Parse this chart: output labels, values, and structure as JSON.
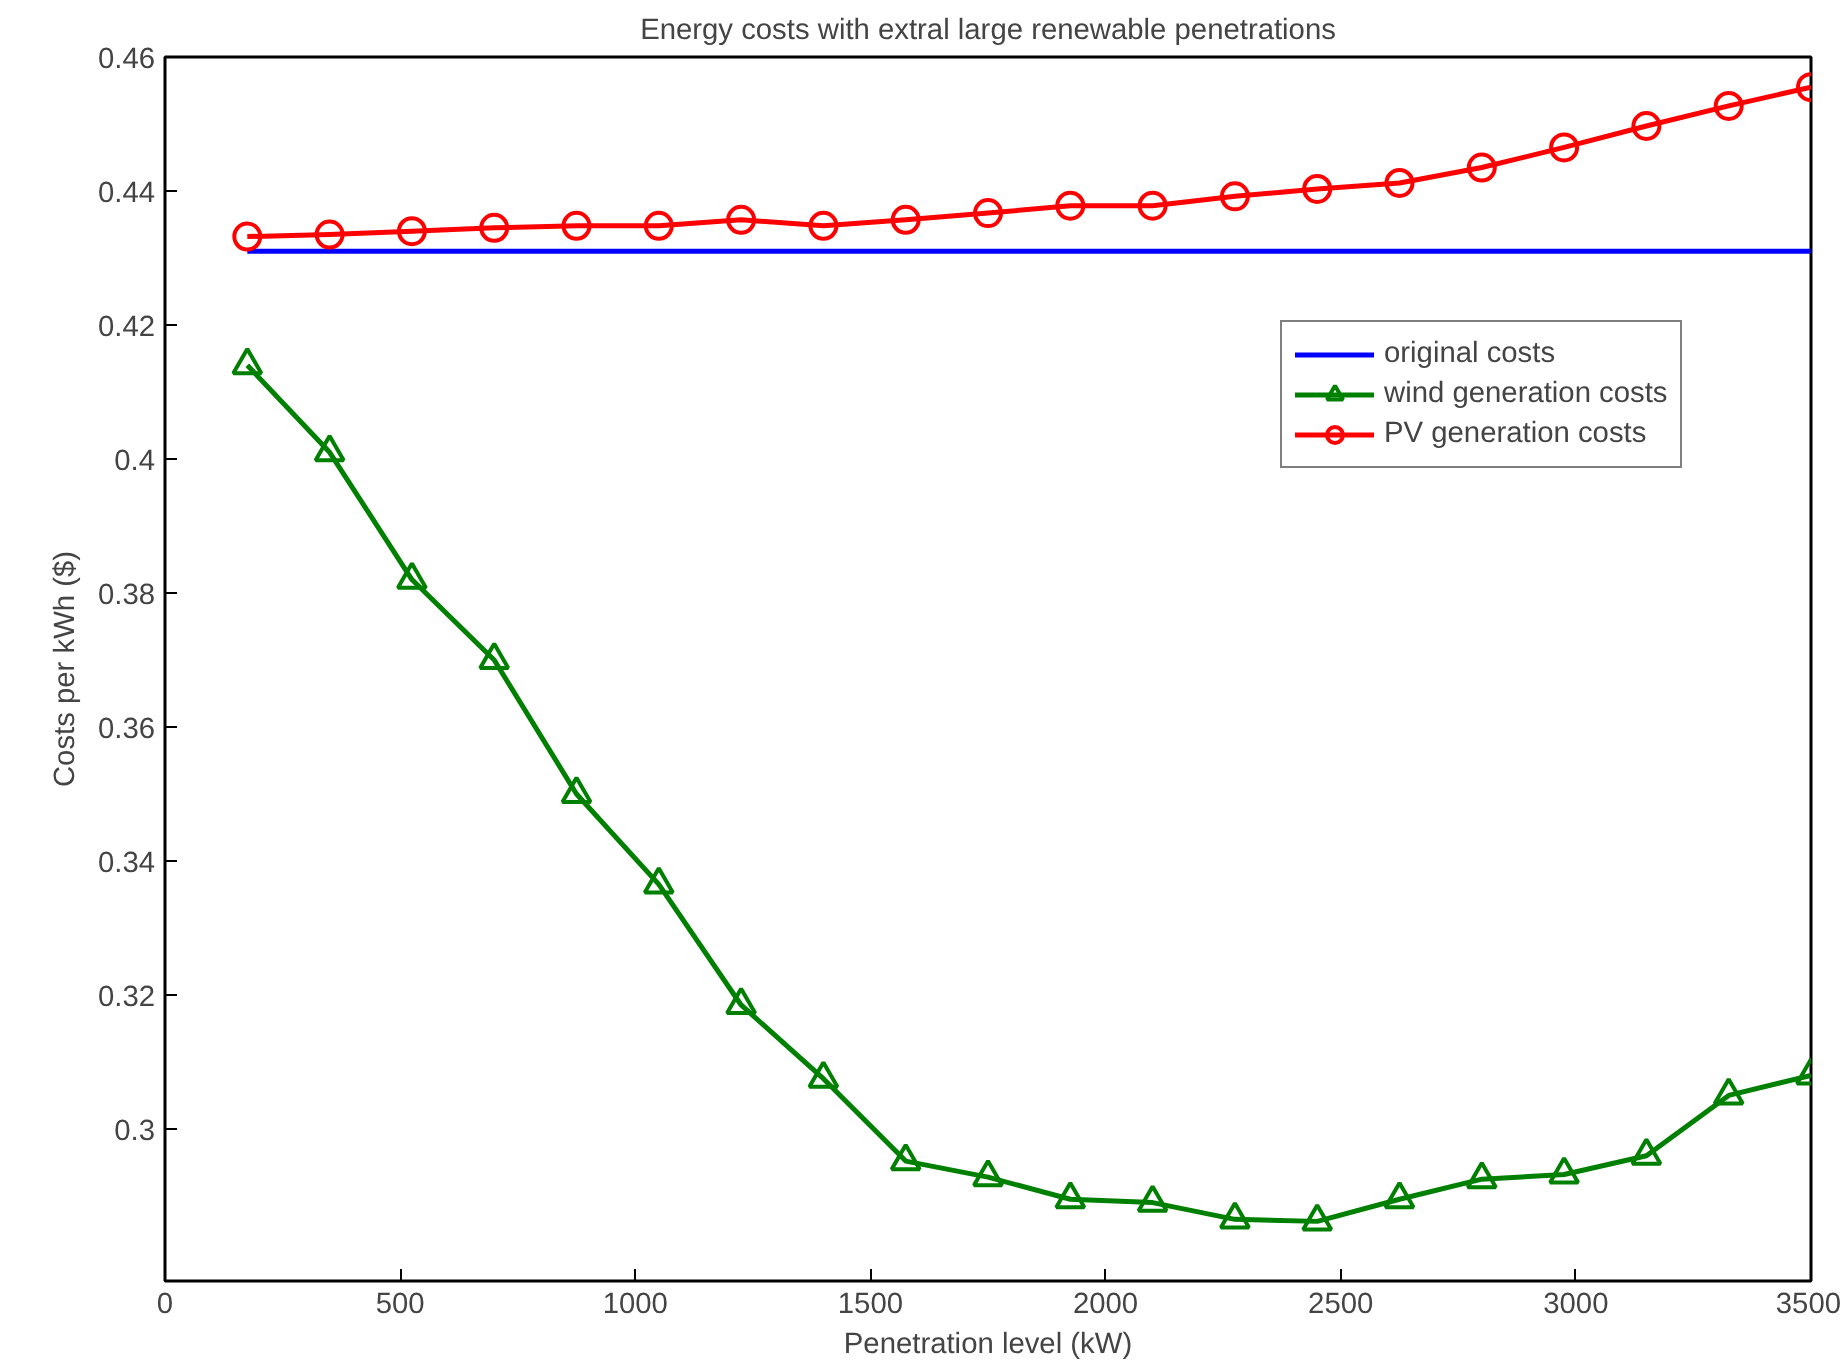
{
  "chart_data": {
    "type": "line",
    "title": "Energy costs with extral large renewable penetrations",
    "xlabel": "Penetration level (kW)",
    "ylabel": "Costs per kWh ($)",
    "x": [
      175,
      350,
      525,
      700,
      875,
      1050,
      1225,
      1400,
      1575,
      1750,
      1925,
      2100,
      2275,
      2450,
      2625,
      2800,
      2975,
      3150,
      3325,
      3500
    ],
    "series": [
      {
        "name": "original costs",
        "color": "#0000ff",
        "marker": "none",
        "values": [
          0.431,
          0.431,
          0.431,
          0.431,
          0.431,
          0.431,
          0.431,
          0.431,
          0.431,
          0.431,
          0.431,
          0.431,
          0.431,
          0.431,
          0.431,
          0.431,
          0.431,
          0.431,
          0.431,
          0.431
        ]
      },
      {
        "name": "wind generation costs",
        "color": "#008000",
        "marker": "triangle",
        "values": [
          0.414,
          0.401,
          0.382,
          0.37,
          0.35,
          0.3365,
          0.3185,
          0.3075,
          0.2952,
          0.2928,
          0.2895,
          0.289,
          0.2865,
          0.2862,
          0.2895,
          0.2925,
          0.2932,
          0.296,
          0.305,
          0.308
        ]
      },
      {
        "name": "PV generation costs",
        "color": "#ff0000",
        "marker": "circle",
        "values": [
          0.4332,
          0.4335,
          0.434,
          0.4345,
          0.4348,
          0.4348,
          0.4357,
          0.4348,
          0.4357,
          0.4367,
          0.4378,
          0.4378,
          0.4392,
          0.4403,
          0.4412,
          0.4435,
          0.4465,
          0.4497,
          0.4527,
          0.4555
        ]
      }
    ],
    "xlim": [
      0,
      3500
    ],
    "ylim": [
      0.2773,
      0.46
    ],
    "xticks": [
      0,
      500,
      1000,
      1500,
      2000,
      2500,
      3000,
      3500
    ],
    "yticks": [
      0.3,
      0.32,
      0.34,
      0.36,
      0.38,
      0.4,
      0.42,
      0.44,
      0.46
    ],
    "grid": false,
    "legend": "top right",
    "line_style": "solid"
  }
}
